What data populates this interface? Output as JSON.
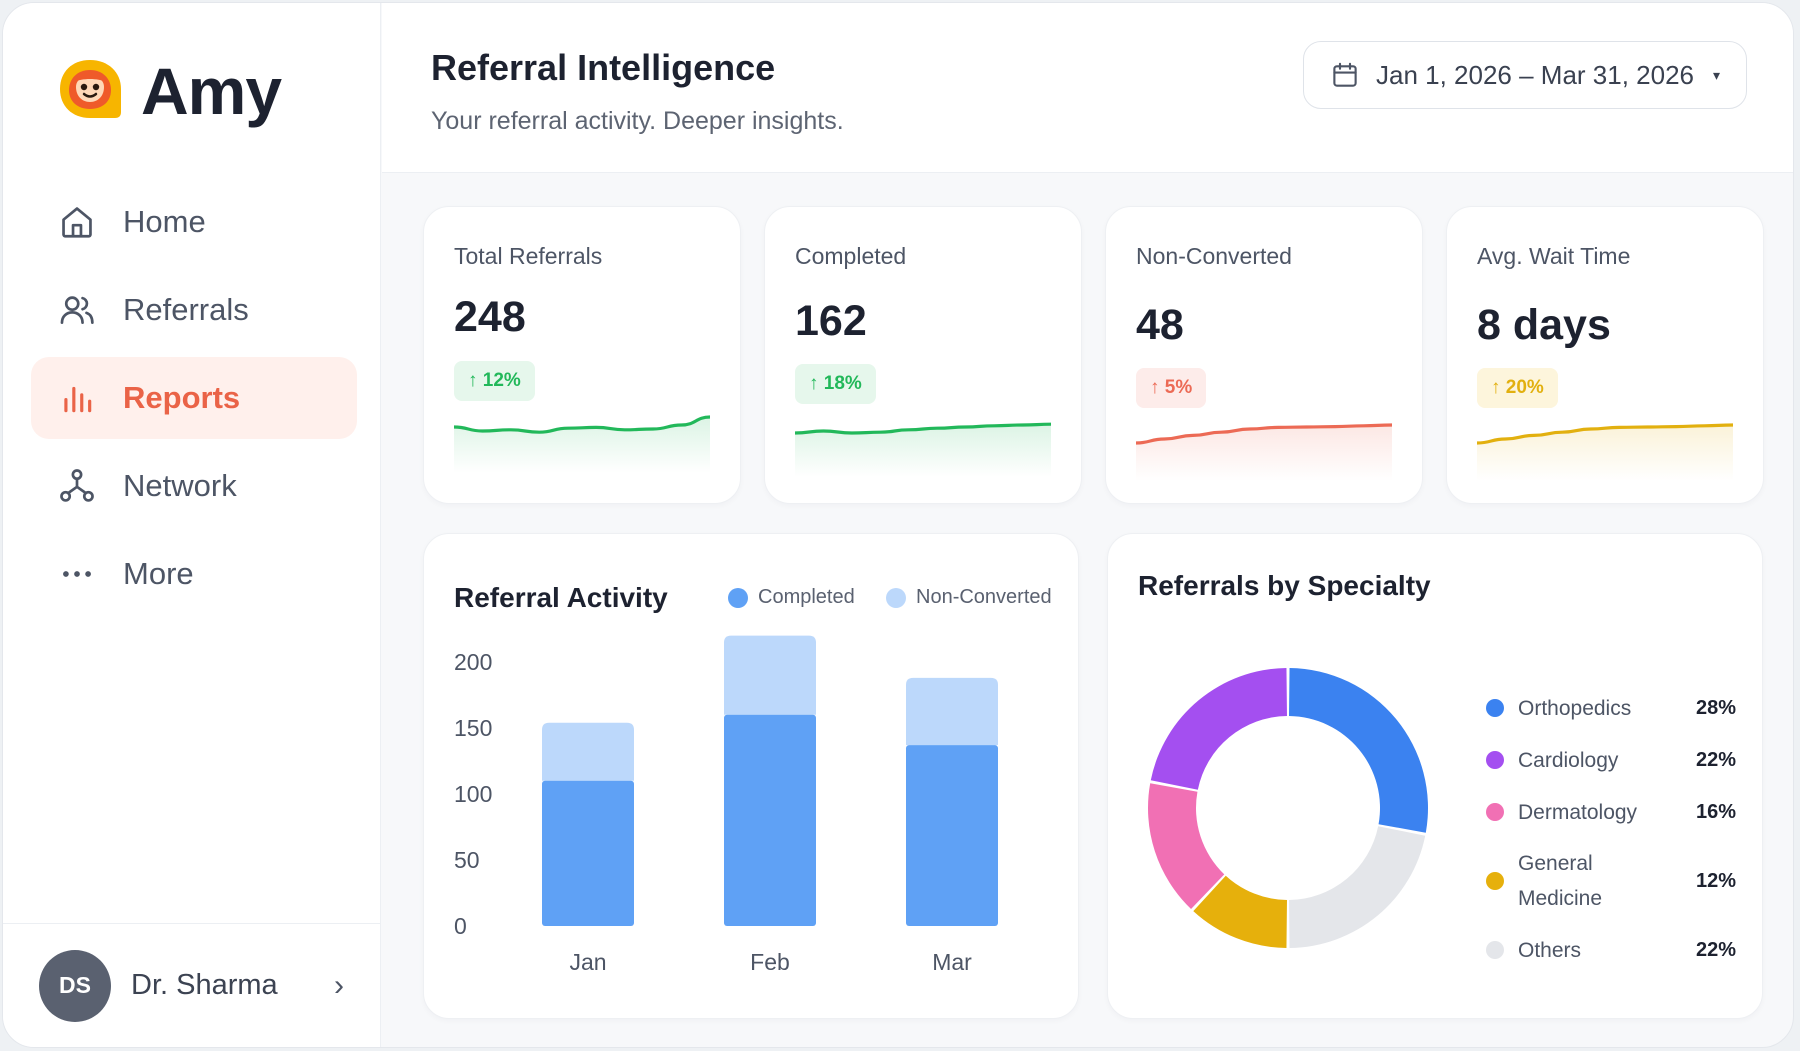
{
  "app": {
    "name": "Amy"
  },
  "sidebar": {
    "items": [
      {
        "label": "Home",
        "icon": "home-icon",
        "active": false
      },
      {
        "label": "Referrals",
        "icon": "users-icon",
        "active": false
      },
      {
        "label": "Reports",
        "icon": "bar-chart-icon",
        "active": true
      },
      {
        "label": "Network",
        "icon": "network-icon",
        "active": false
      },
      {
        "label": "More",
        "icon": "more-icon",
        "active": false
      }
    ],
    "user": {
      "initials": "DS",
      "name": "Dr. Sharma",
      "chevron": "›"
    }
  },
  "header": {
    "title": "Referral Intelligence",
    "subtitle": "Your referral activity. Deeper insights.",
    "date_range": "Jan 1, 2026 – Mar 31, 2026",
    "date_caret": "▾"
  },
  "stats": [
    {
      "label": "Total Referrals",
      "value": "248",
      "delta": "↑ 12%",
      "color": "#22b85a",
      "badge_bg": "#e6f7ec",
      "spark": [
        0.35,
        0.45,
        0.42,
        0.48,
        0.38,
        0.36,
        0.42,
        0.4,
        0.3,
        0.1
      ]
    },
    {
      "label": "Completed",
      "value": "162",
      "delta": "↑ 18%",
      "color": "#22b85a",
      "badge_bg": "#e6f7ec",
      "spark": [
        0.4,
        0.35,
        0.4,
        0.38,
        0.32,
        0.28,
        0.25,
        0.22,
        0.2,
        0.18
      ]
    },
    {
      "label": "Non-Converted",
      "value": "48",
      "delta": "↑ 5%",
      "color": "#ec6a55",
      "badge_bg": "#fdecea",
      "spark": [
        0.55,
        0.45,
        0.36,
        0.28,
        0.2,
        0.16,
        0.15,
        0.14,
        0.12,
        0.1
      ]
    },
    {
      "label": "Avg. Wait Time",
      "value": "8 days",
      "delta": "↑ 20%",
      "color": "#e2b00f",
      "badge_bg": "#fdf5dc",
      "spark": [
        0.55,
        0.45,
        0.36,
        0.28,
        0.2,
        0.16,
        0.15,
        0.14,
        0.12,
        0.1
      ]
    }
  ],
  "activity": {
    "title": "Referral Activity",
    "legend": [
      {
        "label": "Completed",
        "color": "#5fa1f5"
      },
      {
        "label": "Non-Converted",
        "color": "#bcd8fb"
      }
    ]
  },
  "chart_data": [
    {
      "type": "bar",
      "title": "Referral Activity",
      "categories": [
        "Jan",
        "Feb",
        "Mar"
      ],
      "stacked": true,
      "series": [
        {
          "name": "Completed",
          "values": [
            110,
            160,
            137
          ],
          "color": "#5fa1f5"
        },
        {
          "name": "Non-Converted",
          "values": [
            44,
            60,
            51
          ],
          "color": "#bcd8fb"
        }
      ],
      "yticks": [
        0,
        50,
        100,
        150,
        200
      ],
      "ylim": [
        0,
        200
      ],
      "grid": false,
      "legend": "top-right"
    },
    {
      "type": "pie",
      "title": "Referrals by Specialty",
      "donut": true,
      "slices": [
        {
          "label": "Orthopedics",
          "value": 28,
          "pct": "28%",
          "color": "#3b82f0"
        },
        {
          "label": "Others",
          "value": 22,
          "pct": "22%",
          "color": "#e4e6ea"
        },
        {
          "label": "General Medicine",
          "value": 12,
          "pct": "12%",
          "color": "#e6b00c"
        },
        {
          "label": "Dermatology",
          "value": 16,
          "pct": "16%",
          "color": "#f170b4"
        },
        {
          "label": "Cardiology",
          "value": 22,
          "pct": "22%",
          "color": "#a44ff0"
        }
      ],
      "legend": "right"
    }
  ],
  "specialty": {
    "title": "Referrals by Specialty",
    "legend": [
      {
        "label": "Orthopedics",
        "pct": "28%",
        "color": "#3b82f0"
      },
      {
        "label": "Cardiology",
        "pct": "22%",
        "color": "#a44ff0"
      },
      {
        "label": "Dermatology",
        "pct": "16%",
        "color": "#f170b4"
      },
      {
        "label": "General Medicine",
        "pct": "12%",
        "color": "#e6b00c"
      },
      {
        "label": "Others",
        "pct": "22%",
        "color": "#e4e6ea"
      }
    ]
  }
}
